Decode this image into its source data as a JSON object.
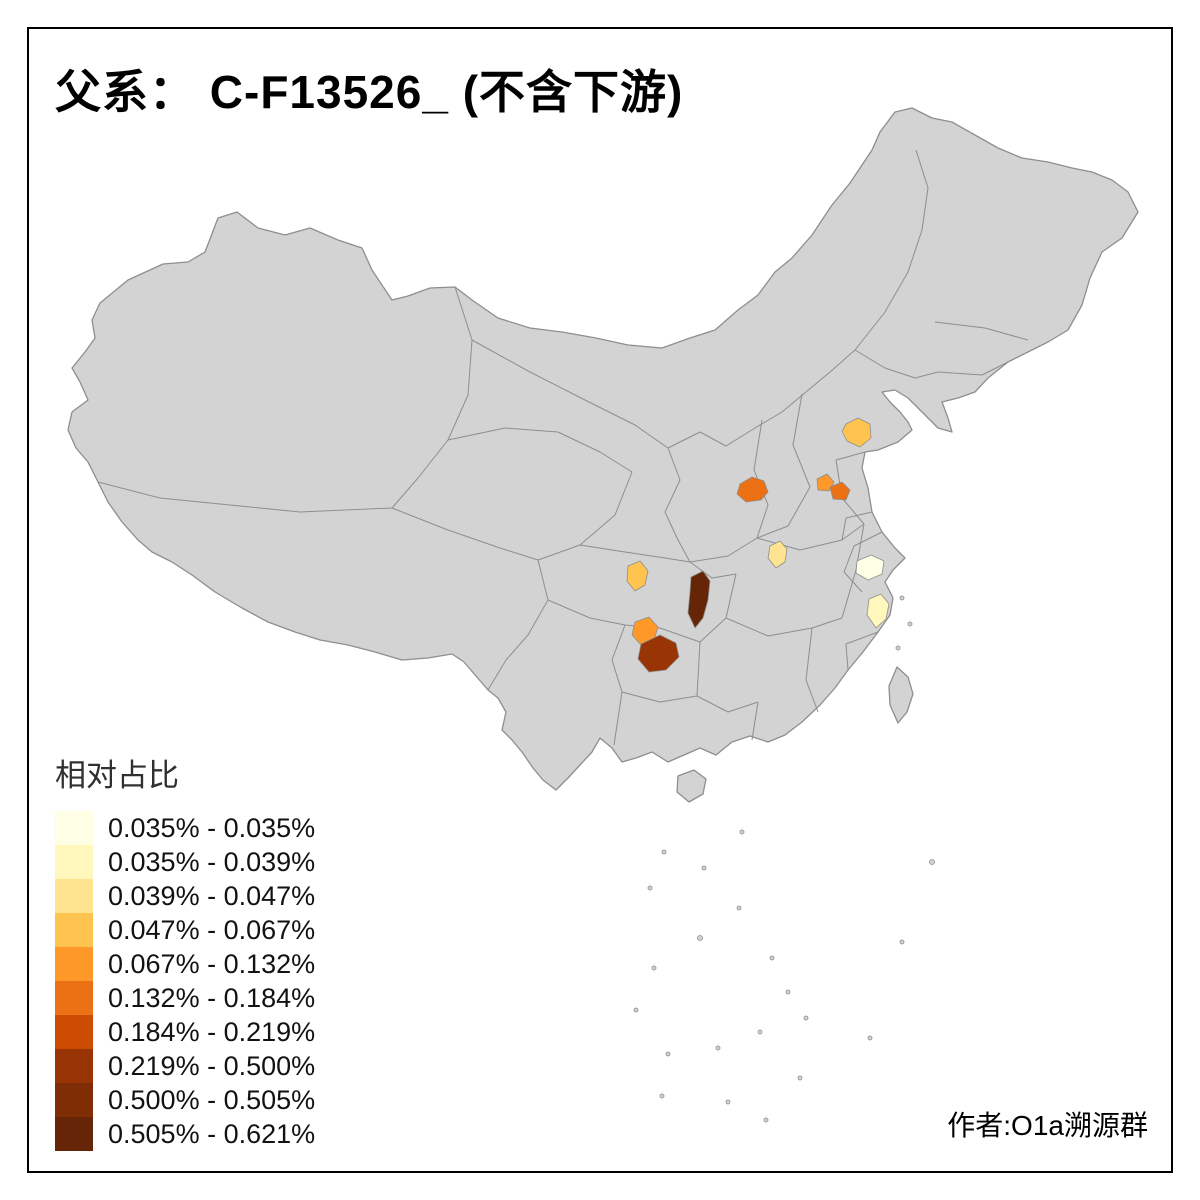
{
  "title": "父系： C-F13526_ (不含下游)",
  "attribution": "作者:O1a溯源群",
  "legend": {
    "title": "相对占比",
    "classes": [
      {
        "label": "0.035% - 0.035%",
        "color": "#FFFFE5"
      },
      {
        "label": "0.035% - 0.039%",
        "color": "#FFF7BC"
      },
      {
        "label": "0.039% - 0.047%",
        "color": "#FEE391"
      },
      {
        "label": "0.047% - 0.067%",
        "color": "#FEC44F"
      },
      {
        "label": "0.067% - 0.132%",
        "color": "#FE9929"
      },
      {
        "label": "0.132% - 0.184%",
        "color": "#EC7014"
      },
      {
        "label": "0.184% - 0.219%",
        "color": "#CC4C02"
      },
      {
        "label": "0.219% - 0.500%",
        "color": "#993404"
      },
      {
        "label": "0.500% - 0.505%",
        "color": "#7E2D04"
      },
      {
        "label": "0.505% - 0.621%",
        "color": "#662506"
      }
    ]
  },
  "map": {
    "land_fill": "#D3D3D3",
    "border_color": "#8E8E8E",
    "regions": [
      {
        "id": "shandong-west",
        "class_index": 4
      },
      {
        "id": "shaanxi-guanzhong",
        "class_index": 6
      },
      {
        "id": "henan-west",
        "class_index": 5
      },
      {
        "id": "henan-east",
        "class_index": 6
      },
      {
        "id": "hubei-west",
        "class_index": 3
      },
      {
        "id": "sichuan-east",
        "class_index": 4
      },
      {
        "id": "chongqing-dark",
        "class_index": 10
      },
      {
        "id": "guizhou-north",
        "class_index": 5
      },
      {
        "id": "guizhou-central",
        "class_index": 8
      },
      {
        "id": "zhejiang-north",
        "class_index": 1
      },
      {
        "id": "zhejiang-coast",
        "class_index": 2
      }
    ]
  }
}
